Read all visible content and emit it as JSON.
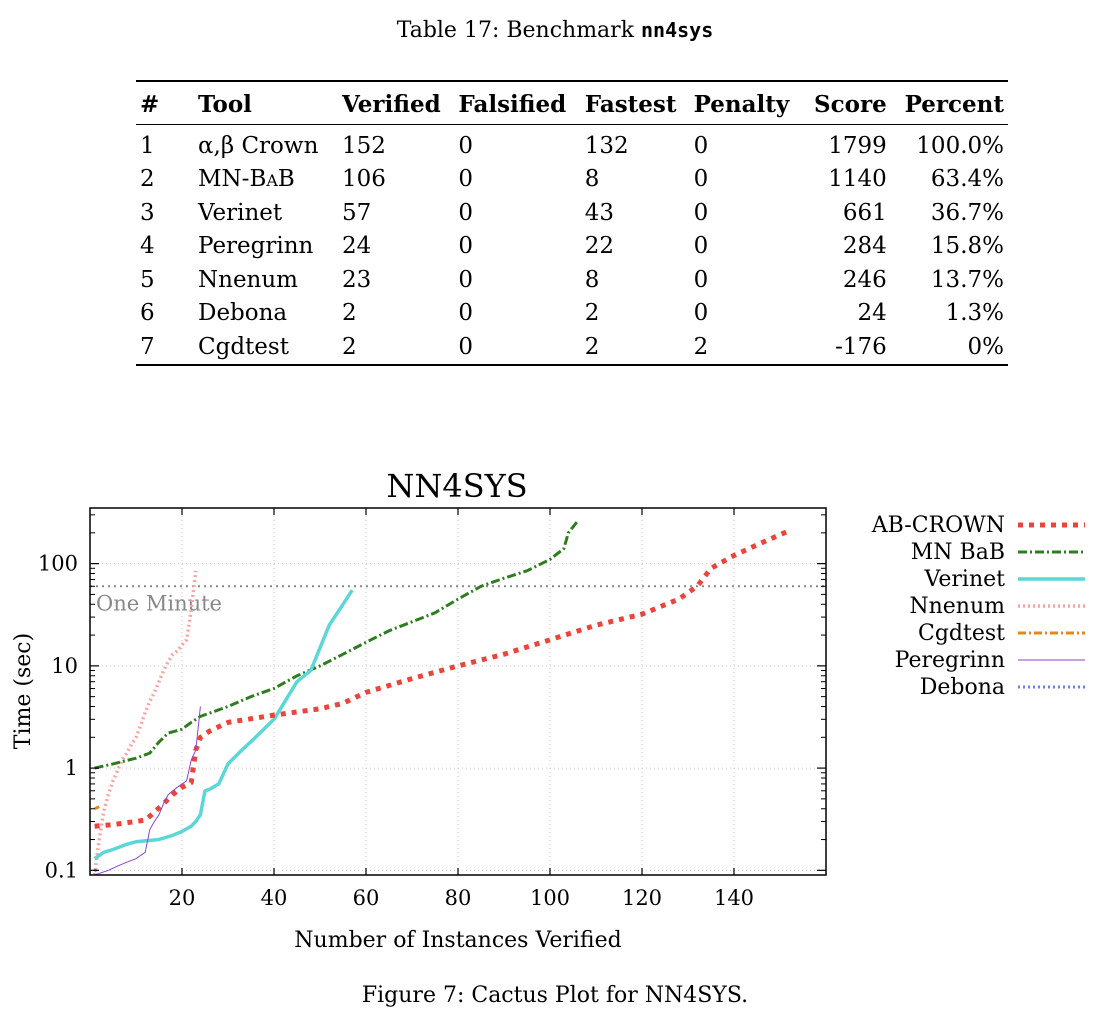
{
  "table": {
    "caption_prefix": "Table 17: Benchmark ",
    "caption_name": "nn4sys",
    "headers": [
      "#",
      "Tool",
      "Verified",
      "Falsified",
      "Fastest",
      "Penalty",
      "Score",
      "Percent"
    ],
    "rows": [
      [
        "1",
        "α,β Crown",
        "152",
        "0",
        "132",
        "0",
        "1799",
        "100.0%"
      ],
      [
        "2",
        "MN-BaB",
        "106",
        "0",
        "8",
        "0",
        "1140",
        "63.4%"
      ],
      [
        "3",
        "Verinet",
        "57",
        "0",
        "43",
        "0",
        "661",
        "36.7%"
      ],
      [
        "4",
        "Peregrinn",
        "24",
        "0",
        "22",
        "0",
        "284",
        "15.8%"
      ],
      [
        "5",
        "Nnenum",
        "23",
        "0",
        "8",
        "0",
        "246",
        "13.7%"
      ],
      [
        "6",
        "Debona",
        "2",
        "0",
        "2",
        "0",
        "24",
        "1.3%"
      ],
      [
        "7",
        "Cgdtest",
        "2",
        "0",
        "2",
        "2",
        "-176",
        "0%"
      ]
    ]
  },
  "figure_caption": "Figure 7: Cactus Plot for NN4SYS.",
  "chart_data": {
    "type": "line",
    "title": "NN4SYS",
    "xlabel": "Number of Instances Verified",
    "ylabel": "Time (sec)",
    "xlim": [
      0,
      160
    ],
    "ylim": [
      0.09,
      350
    ],
    "y_scale": "log",
    "x_ticks": [
      20,
      40,
      60,
      80,
      100,
      120,
      140
    ],
    "y_ticks": [
      0.1,
      1,
      10,
      100
    ],
    "y_tick_labels": [
      "0.1",
      "1",
      "10",
      "100"
    ],
    "grid": true,
    "legend_position": "outside-right",
    "reference_line": {
      "value": 60,
      "label": "One Minute",
      "color": "#888888"
    },
    "series": [
      {
        "name": "AB-CROWN",
        "color": "#e8453c",
        "x": [
          1,
          5,
          10,
          12,
          14,
          16,
          18,
          20,
          22,
          23,
          24,
          26,
          30,
          40,
          50,
          55,
          60,
          70,
          80,
          90,
          100,
          110,
          120,
          128,
          132,
          135,
          140,
          146,
          152
        ],
        "y": [
          0.27,
          0.28,
          0.3,
          0.31,
          0.37,
          0.45,
          0.55,
          0.65,
          0.72,
          1.5,
          2.0,
          2.3,
          2.8,
          3.3,
          3.8,
          4.3,
          5.5,
          7.5,
          10,
          13,
          18,
          25,
          32,
          45,
          60,
          90,
          120,
          160,
          210
        ]
      },
      {
        "name": "MN BaB",
        "color": "#2e7d1f",
        "x": [
          1,
          5,
          10,
          13,
          15,
          17,
          20,
          22,
          24,
          30,
          35,
          40,
          45,
          50,
          55,
          60,
          65,
          70,
          75,
          80,
          85,
          90,
          95,
          100,
          103,
          104,
          106
        ],
        "y": [
          1.0,
          1.1,
          1.25,
          1.4,
          1.8,
          2.2,
          2.4,
          2.8,
          3.2,
          4.0,
          5.0,
          6.0,
          8.0,
          10,
          13,
          17,
          22,
          27,
          33,
          45,
          60,
          72,
          85,
          110,
          140,
          200,
          260
        ]
      },
      {
        "name": "Verinet",
        "color": "#5cd6d6",
        "x": [
          1,
          3,
          5,
          8,
          10,
          15,
          18,
          20,
          22,
          23,
          24,
          25,
          26,
          28,
          30,
          33,
          36,
          40,
          45,
          48,
          50,
          52,
          55,
          57
        ],
        "y": [
          0.13,
          0.15,
          0.16,
          0.18,
          0.19,
          0.2,
          0.22,
          0.24,
          0.27,
          0.3,
          0.35,
          0.6,
          0.62,
          0.7,
          1.1,
          1.5,
          2.0,
          3.0,
          7.0,
          9.0,
          15,
          25,
          40,
          55
        ]
      },
      {
        "name": "Nnenum",
        "color": "#f4a6a6",
        "x": [
          1,
          2,
          3,
          4,
          5,
          6,
          7,
          8,
          9,
          10,
          11,
          12,
          13,
          14,
          15,
          16,
          17,
          18,
          19,
          20,
          21,
          22,
          23
        ],
        "y": [
          0.09,
          0.2,
          0.38,
          0.55,
          0.75,
          0.95,
          1.2,
          1.4,
          1.7,
          2.0,
          2.6,
          3.5,
          4.5,
          5.5,
          7,
          9,
          11,
          13,
          14,
          16,
          18,
          35,
          85
        ]
      },
      {
        "name": "Cgdtest",
        "color": "#e08a1e",
        "x": [
          1,
          2
        ],
        "y": [
          0.4,
          0.42
        ]
      },
      {
        "name": "Peregrinn",
        "color": "#8e44c8",
        "x": [
          1,
          4,
          6,
          8,
          10,
          11,
          12,
          13,
          14,
          15,
          16,
          17,
          18,
          19,
          20,
          21,
          22,
          23,
          24
        ],
        "y": [
          0.09,
          0.1,
          0.11,
          0.12,
          0.13,
          0.14,
          0.15,
          0.25,
          0.3,
          0.35,
          0.45,
          0.55,
          0.6,
          0.65,
          0.7,
          0.75,
          1.2,
          1.5,
          4.0
        ]
      },
      {
        "name": "Debona",
        "color": "#6a7ff0",
        "x": [
          1,
          2
        ],
        "y": [
          0.1,
          0.1
        ]
      }
    ]
  }
}
